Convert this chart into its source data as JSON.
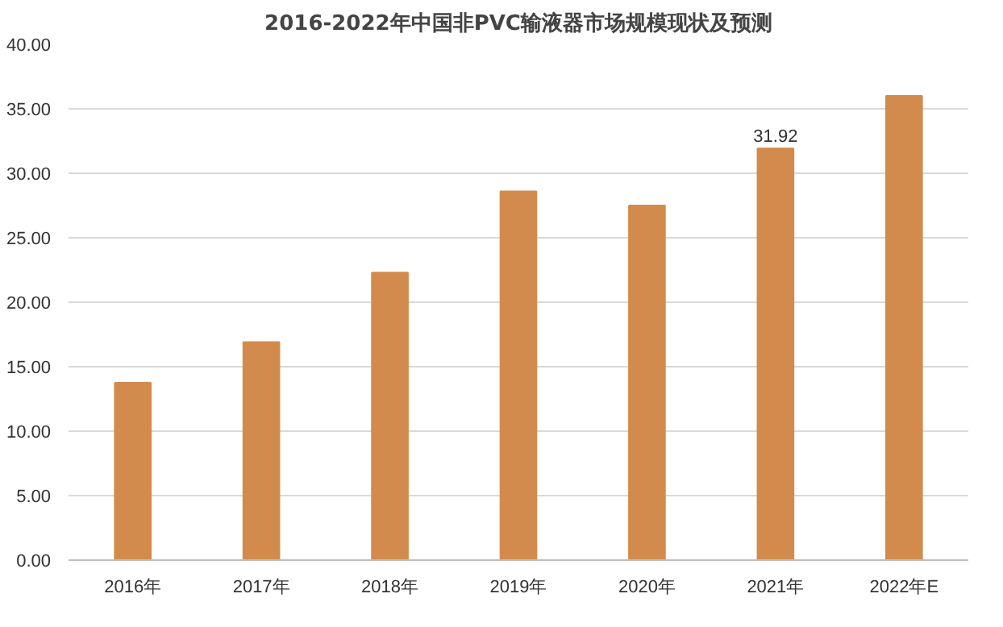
{
  "chart_data": {
    "type": "bar",
    "title": "2016-2022年中国非PVC输液器市场规模现状及预测",
    "categories": [
      "2016年",
      "2017年",
      "2018年",
      "2019年",
      "2020年",
      "2021年",
      "2022年E"
    ],
    "values": [
      13.75,
      16.9,
      22.3,
      28.6,
      27.5,
      31.92,
      36.0
    ],
    "value_labels": [
      null,
      null,
      null,
      null,
      null,
      "31.92",
      null
    ],
    "color": "#d38b4d",
    "ylim": [
      0,
      40
    ],
    "yticks": [
      {
        "value": 0,
        "label": "0.00"
      },
      {
        "value": 5,
        "label": "5.00"
      },
      {
        "value": 10,
        "label": "10.00"
      },
      {
        "value": 15,
        "label": "15.00"
      },
      {
        "value": 20,
        "label": "20.00"
      },
      {
        "value": 25,
        "label": "25.00"
      },
      {
        "value": 30,
        "label": "30.00"
      },
      {
        "value": 35,
        "label": "35.00"
      },
      {
        "value": 40,
        "label": "40.00"
      }
    ],
    "grid": "y"
  }
}
